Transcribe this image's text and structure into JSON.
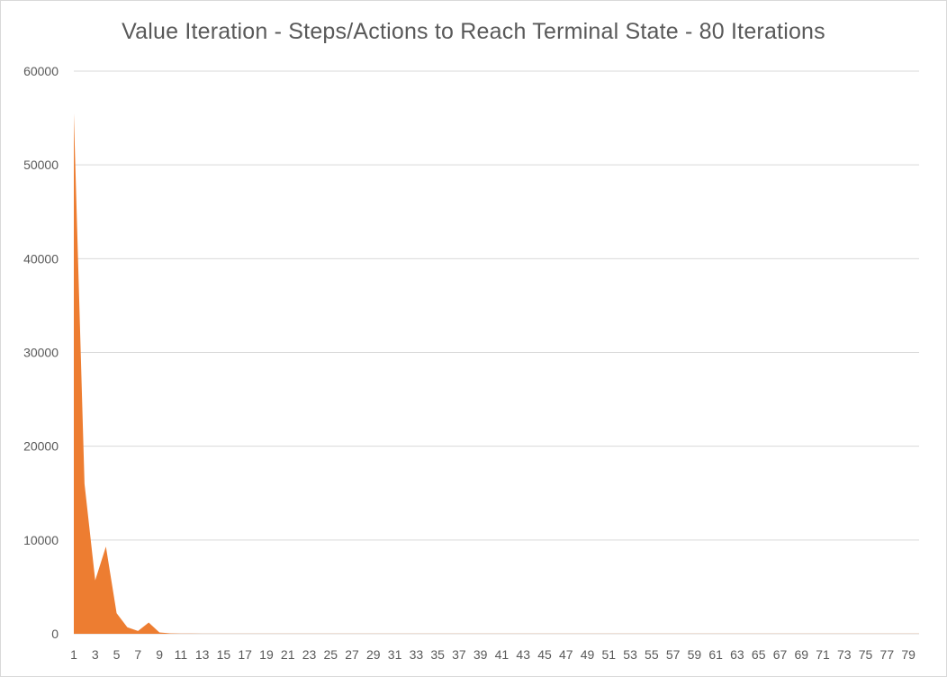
{
  "chart_data": {
    "type": "area",
    "title": "Value Iteration - Steps/Actions to Reach Terminal State - 80 Iterations",
    "xlabel": "",
    "ylabel": "",
    "ylim": [
      0,
      60000
    ],
    "yticks": [
      0,
      10000,
      20000,
      30000,
      40000,
      50000,
      60000
    ],
    "x_tick_labels": [
      "1",
      "3",
      "5",
      "7",
      "9",
      "11",
      "13",
      "15",
      "17",
      "19",
      "21",
      "23",
      "25",
      "27",
      "29",
      "31",
      "33",
      "35",
      "37",
      "39",
      "41",
      "43",
      "45",
      "47",
      "49",
      "51",
      "53",
      "55",
      "57",
      "59",
      "61",
      "63",
      "65",
      "67",
      "69",
      "71",
      "73",
      "75",
      "77",
      "79"
    ],
    "grid": true,
    "legend": "none",
    "series": [
      {
        "color": "#ED7D31",
        "x": [
          1,
          2,
          3,
          4,
          5,
          6,
          7,
          8,
          9,
          10,
          11,
          12,
          13,
          14,
          15,
          16,
          17,
          18,
          19,
          20,
          21,
          22,
          23,
          24,
          25,
          26,
          27,
          28,
          29,
          30,
          31,
          32,
          33,
          34,
          35,
          36,
          37,
          38,
          39,
          40,
          41,
          42,
          43,
          44,
          45,
          46,
          47,
          48,
          49,
          50,
          51,
          52,
          53,
          54,
          55,
          56,
          57,
          58,
          59,
          60,
          61,
          62,
          63,
          64,
          65,
          66,
          67,
          68,
          69,
          70,
          71,
          72,
          73,
          74,
          75,
          76,
          77,
          78,
          79,
          80
        ],
        "values": [
          55500,
          16000,
          5700,
          9300,
          2200,
          700,
          300,
          1200,
          150,
          50,
          30,
          20,
          10,
          10,
          10,
          10,
          10,
          10,
          10,
          10,
          10,
          10,
          10,
          10,
          10,
          10,
          10,
          10,
          10,
          10,
          10,
          10,
          10,
          10,
          10,
          10,
          10,
          10,
          10,
          10,
          10,
          10,
          10,
          10,
          10,
          10,
          10,
          10,
          10,
          10,
          10,
          10,
          10,
          10,
          10,
          10,
          10,
          10,
          10,
          10,
          10,
          10,
          10,
          10,
          10,
          10,
          10,
          10,
          10,
          10,
          10,
          10,
          10,
          10,
          10,
          10,
          10,
          10,
          10,
          10
        ]
      }
    ]
  }
}
